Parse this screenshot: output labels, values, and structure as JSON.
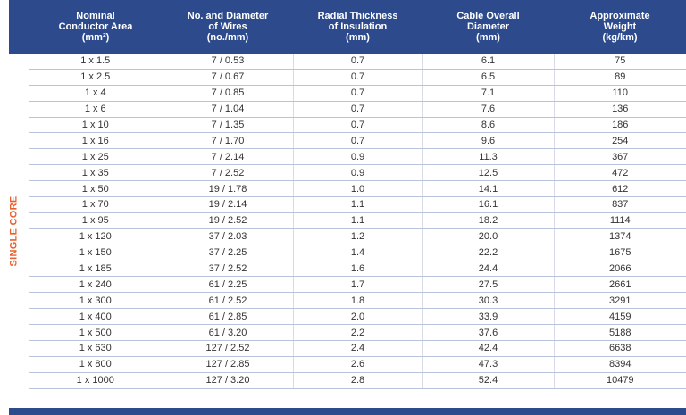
{
  "table": {
    "headers": [
      "Nominal\nConductor Area\n(mm²)",
      "No. and Diameter\nof Wires\n(no./mm)",
      "Radial Thickness\nof Insulation\n(mm)",
      "Cable Overall\nDiameter\n(mm)",
      "Approximate\nWeight\n(kg/km)"
    ],
    "side_label": "SINGLE CORE",
    "rows": [
      [
        "1 x 1.5",
        "7 / 0.53",
        "0.7",
        "6.1",
        "75"
      ],
      [
        "1 x 2.5",
        "7 / 0.67",
        "0.7",
        "6.5",
        "89"
      ],
      [
        "1 x 4",
        "7 / 0.85",
        "0.7",
        "7.1",
        "110"
      ],
      [
        "1 x 6",
        "7 / 1.04",
        "0.7",
        "7.6",
        "136"
      ],
      [
        "1 x 10",
        "7 / 1.35",
        "0.7",
        "8.6",
        "186"
      ],
      [
        "1 x 16",
        "7 / 1.70",
        "0.7",
        "9.6",
        "254"
      ],
      [
        "1 x 25",
        "7 / 2.14",
        "0.9",
        "11.3",
        "367"
      ],
      [
        "1 x 35",
        "7 / 2.52",
        "0.9",
        "12.5",
        "472"
      ],
      [
        "1 x 50",
        "19 / 1.78",
        "1.0",
        "14.1",
        "612"
      ],
      [
        "1 x 70",
        "19 / 2.14",
        "1.1",
        "16.1",
        "837"
      ],
      [
        "1 x 95",
        "19 / 2.52",
        "1.1",
        "18.2",
        "1114"
      ],
      [
        "1 x 120",
        "37 / 2.03",
        "1.2",
        "20.0",
        "1374"
      ],
      [
        "1 x 150",
        "37 / 2.25",
        "1.4",
        "22.2",
        "1675"
      ],
      [
        "1 x 185",
        "37 / 2.52",
        "1.6",
        "24.4",
        "2066"
      ],
      [
        "1 x 240",
        "61 / 2.25",
        "1.7",
        "27.5",
        "2661"
      ],
      [
        "1 x 300",
        "61 / 2.52",
        "1.8",
        "30.3",
        "3291"
      ],
      [
        "1 x 400",
        "61 / 2.85",
        "2.0",
        "33.9",
        "4159"
      ],
      [
        "1 x 500",
        "61 / 3.20",
        "2.2",
        "37.6",
        "5188"
      ],
      [
        "1 x 630",
        "127 / 2.52",
        "2.4",
        "42.4",
        "6638"
      ],
      [
        "1 x 800",
        "127 / 2.85",
        "2.6",
        "47.3",
        "8394"
      ],
      [
        "1 x 1000",
        "127 / 3.20",
        "2.8",
        "52.4",
        "10479"
      ]
    ]
  },
  "colors": {
    "header_bg": "#2c4a8c",
    "side_label": "#e8602c",
    "row_divider": "#b9c3d9"
  }
}
